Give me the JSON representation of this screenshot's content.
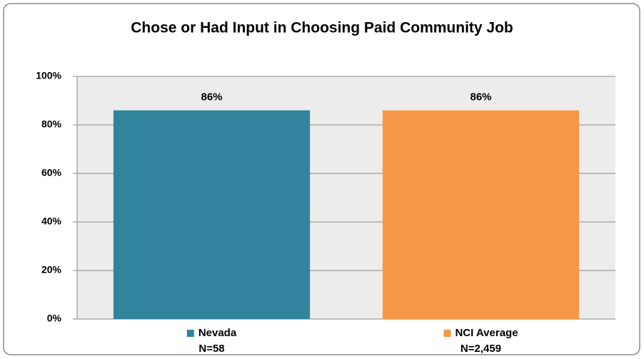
{
  "chart_data": {
    "type": "bar",
    "title": "Chose or Had Input in Choosing Paid Community Job",
    "categories": [
      "Nevada",
      "NCI Average"
    ],
    "sample_sizes": [
      "N=58",
      "N=2,459"
    ],
    "values": [
      86,
      86
    ],
    "value_labels": [
      "86%",
      "86%"
    ],
    "colors": [
      "#31849b",
      "#f79646"
    ],
    "ylim": [
      0,
      100
    ],
    "yticks": [
      {
        "value": 0,
        "label": "0%"
      },
      {
        "value": 20,
        "label": "20%"
      },
      {
        "value": 40,
        "label": "40%"
      },
      {
        "value": 60,
        "label": "60%"
      },
      {
        "value": 80,
        "label": "80%"
      },
      {
        "value": 100,
        "label": "100%"
      }
    ],
    "grid": true
  }
}
